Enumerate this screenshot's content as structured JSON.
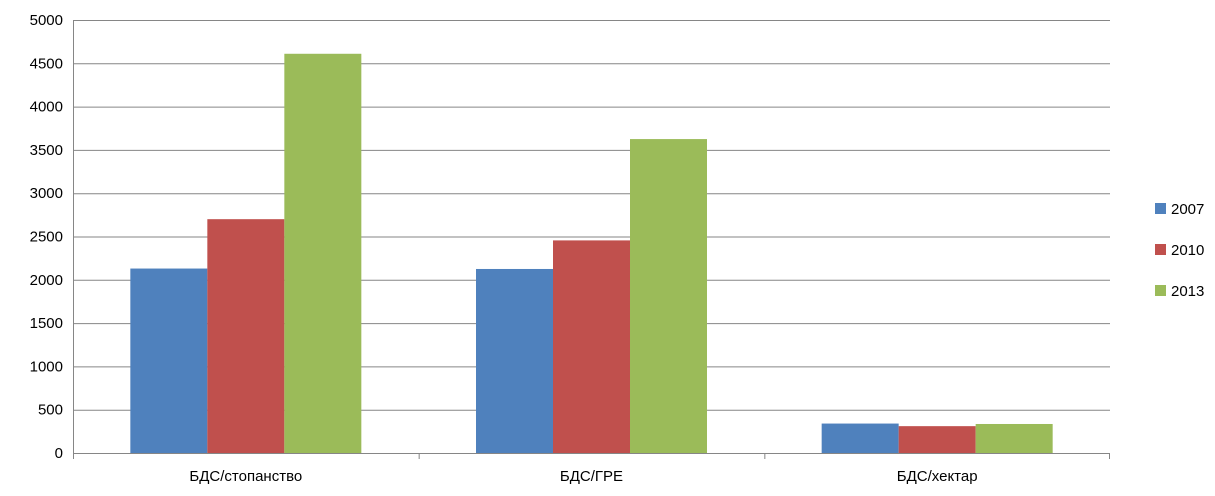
{
  "chart_data": {
    "type": "bar",
    "categories": [
      "БДС/стопанство",
      "БДС/ГРЕ",
      "БДС/хектар"
    ],
    "series": [
      {
        "name": "2007",
        "color": "#4F81BD",
        "values": [
          2130,
          2125,
          340
        ]
      },
      {
        "name": "2010",
        "color": "#C0504D",
        "values": [
          2700,
          2455,
          310
        ]
      },
      {
        "name": "2013",
        "color": "#9BBB59",
        "values": [
          4610,
          3625,
          335
        ]
      }
    ],
    "ylim": [
      0,
      5000
    ],
    "yticks": [
      0,
      500,
      1000,
      1500,
      2000,
      2500,
      3000,
      3500,
      4000,
      4500,
      5000
    ],
    "grid": true,
    "legend_position": "right",
    "gridline_color": "#868686"
  }
}
